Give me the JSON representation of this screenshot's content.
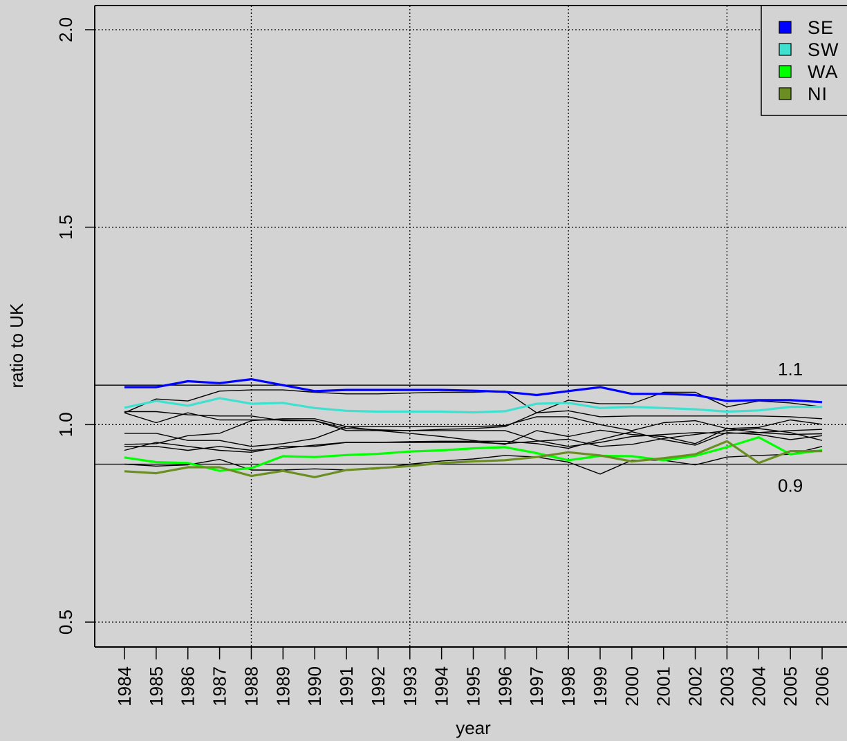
{
  "chart_data": {
    "type": "line",
    "xlabel": "year",
    "ylabel": "ratio to UK",
    "x": [
      1984,
      1985,
      1986,
      1987,
      1988,
      1989,
      1990,
      1991,
      1992,
      1993,
      1994,
      1995,
      1996,
      1997,
      1998,
      1999,
      2000,
      2001,
      2002,
      2003,
      2004,
      2005,
      2006
    ],
    "x_tick_labels": [
      "1984",
      "1985",
      "1986",
      "1987",
      "1988",
      "1989",
      "1990",
      "1991",
      "1992",
      "1993",
      "1994",
      "1995",
      "1996",
      "1997",
      "1998",
      "1999",
      "2000",
      "2001",
      "2002",
      "2003",
      "2004",
      "2005",
      "2006"
    ],
    "y_ticks": [
      0.5,
      1.0,
      1.5,
      2.0
    ],
    "y_tick_labels": [
      "0.5",
      "1.0",
      "1.5",
      "2.0"
    ],
    "ylim": [
      0.44,
      2.06
    ],
    "x_gridlines": [
      1988,
      1993,
      1998,
      2003
    ],
    "y_gridlines": [
      0.5,
      1.0,
      1.5,
      2.0
    ],
    "grid": true,
    "legend_position": "top-right",
    "reference_lines": [
      {
        "value": 1.1,
        "label": "1.1"
      },
      {
        "value": 0.9,
        "label": "0.9"
      }
    ],
    "series": [
      {
        "name": "SE",
        "color": "#0000ff",
        "highlight": true,
        "values": [
          1.095,
          1.095,
          1.11,
          1.105,
          1.115,
          1.1,
          1.085,
          1.088,
          1.088,
          1.088,
          1.088,
          1.086,
          1.083,
          1.075,
          1.085,
          1.095,
          1.078,
          1.078,
          1.075,
          1.06,
          1.062,
          1.062,
          1.057
        ]
      },
      {
        "name": "SW",
        "color": "#40e0d0",
        "highlight": true,
        "values": [
          1.043,
          1.06,
          1.048,
          1.067,
          1.053,
          1.055,
          1.042,
          1.035,
          1.033,
          1.033,
          1.033,
          1.031,
          1.034,
          1.053,
          1.055,
          1.042,
          1.045,
          1.042,
          1.039,
          1.033,
          1.036,
          1.045,
          1.045
        ]
      },
      {
        "name": "WA",
        "color": "#00ff00",
        "highlight": true,
        "values": [
          0.917,
          0.905,
          0.903,
          0.883,
          0.89,
          0.92,
          0.918,
          0.923,
          0.926,
          0.932,
          0.935,
          0.94,
          0.943,
          0.928,
          0.91,
          0.921,
          0.92,
          0.91,
          0.921,
          0.943,
          0.968,
          0.925,
          0.935
        ]
      },
      {
        "name": "NI",
        "color": "#6b8e23",
        "highlight": true,
        "values": [
          0.882,
          0.877,
          0.892,
          0.892,
          0.87,
          0.883,
          0.867,
          0.885,
          0.89,
          0.895,
          0.903,
          0.907,
          0.91,
          0.918,
          0.93,
          0.922,
          0.907,
          0.915,
          0.925,
          0.958,
          0.903,
          0.933,
          0.933
        ]
      },
      {
        "values": [
          1.03,
          1.005,
          1.03,
          1.012,
          1.012,
          1.012,
          1.01,
          0.99,
          0.987,
          0.985,
          0.985,
          0.985,
          0.985,
          0.96,
          0.945,
          0.955,
          0.97,
          0.975,
          0.98,
          0.978,
          0.98,
          0.985,
          0.988
        ]
      },
      {
        "values": [
          1.033,
          1.033,
          1.025,
          1.022,
          1.022,
          1.01,
          1.01,
          0.985,
          0.985,
          0.978,
          0.97,
          0.96,
          0.95,
          0.985,
          0.97,
          0.986,
          0.975,
          0.97,
          0.952,
          0.99,
          0.993,
          1.012,
          1.001
        ]
      },
      {
        "values": [
          0.978,
          0.978,
          0.96,
          0.96,
          0.945,
          0.952,
          0.965,
          0.995,
          0.995,
          0.995,
          0.995,
          0.995,
          0.998,
          1.02,
          1.02,
          1.0,
          0.985,
          1.005,
          1.01,
          0.99,
          0.98,
          0.975,
          0.977
        ]
      },
      {
        "values": [
          0.95,
          0.952,
          0.972,
          0.978,
          1.01,
          1.015,
          1.015,
          0.995,
          0.985,
          0.985,
          0.988,
          0.99,
          0.995,
          1.03,
          1.035,
          1.02,
          1.022,
          1.022,
          1.022,
          1.022,
          1.022,
          1.02,
          1.015
        ]
      },
      {
        "values": [
          0.935,
          0.955,
          0.945,
          0.935,
          0.93,
          0.945,
          0.945,
          0.955,
          0.955,
          0.957,
          0.958,
          0.958,
          0.958,
          0.952,
          0.94,
          0.962,
          0.982,
          0.962,
          0.948,
          0.98,
          0.975,
          0.962,
          0.972
        ]
      },
      {
        "values": [
          0.945,
          0.945,
          0.935,
          0.945,
          0.935,
          0.94,
          0.948,
          0.955,
          0.955,
          0.955,
          0.955,
          0.955,
          0.952,
          0.958,
          0.963,
          0.945,
          0.95,
          0.965,
          0.975,
          0.985,
          0.99,
          0.98,
          0.96
        ]
      },
      {
        "values": [
          0.9,
          0.895,
          0.898,
          0.912,
          0.885,
          0.885,
          0.888,
          0.885,
          0.888,
          0.9,
          0.908,
          0.913,
          0.922,
          0.918,
          0.905,
          0.875,
          0.91,
          0.91,
          0.898,
          0.918,
          0.922,
          0.925,
          0.945
        ]
      },
      {
        "values": [
          1.03,
          1.065,
          1.06,
          1.085,
          1.088,
          1.088,
          1.082,
          1.078,
          1.078,
          1.08,
          1.082,
          1.082,
          1.085,
          1.03,
          1.062,
          1.053,
          1.053,
          1.082,
          1.082,
          1.045,
          1.06,
          1.055,
          1.045
        ]
      }
    ]
  }
}
